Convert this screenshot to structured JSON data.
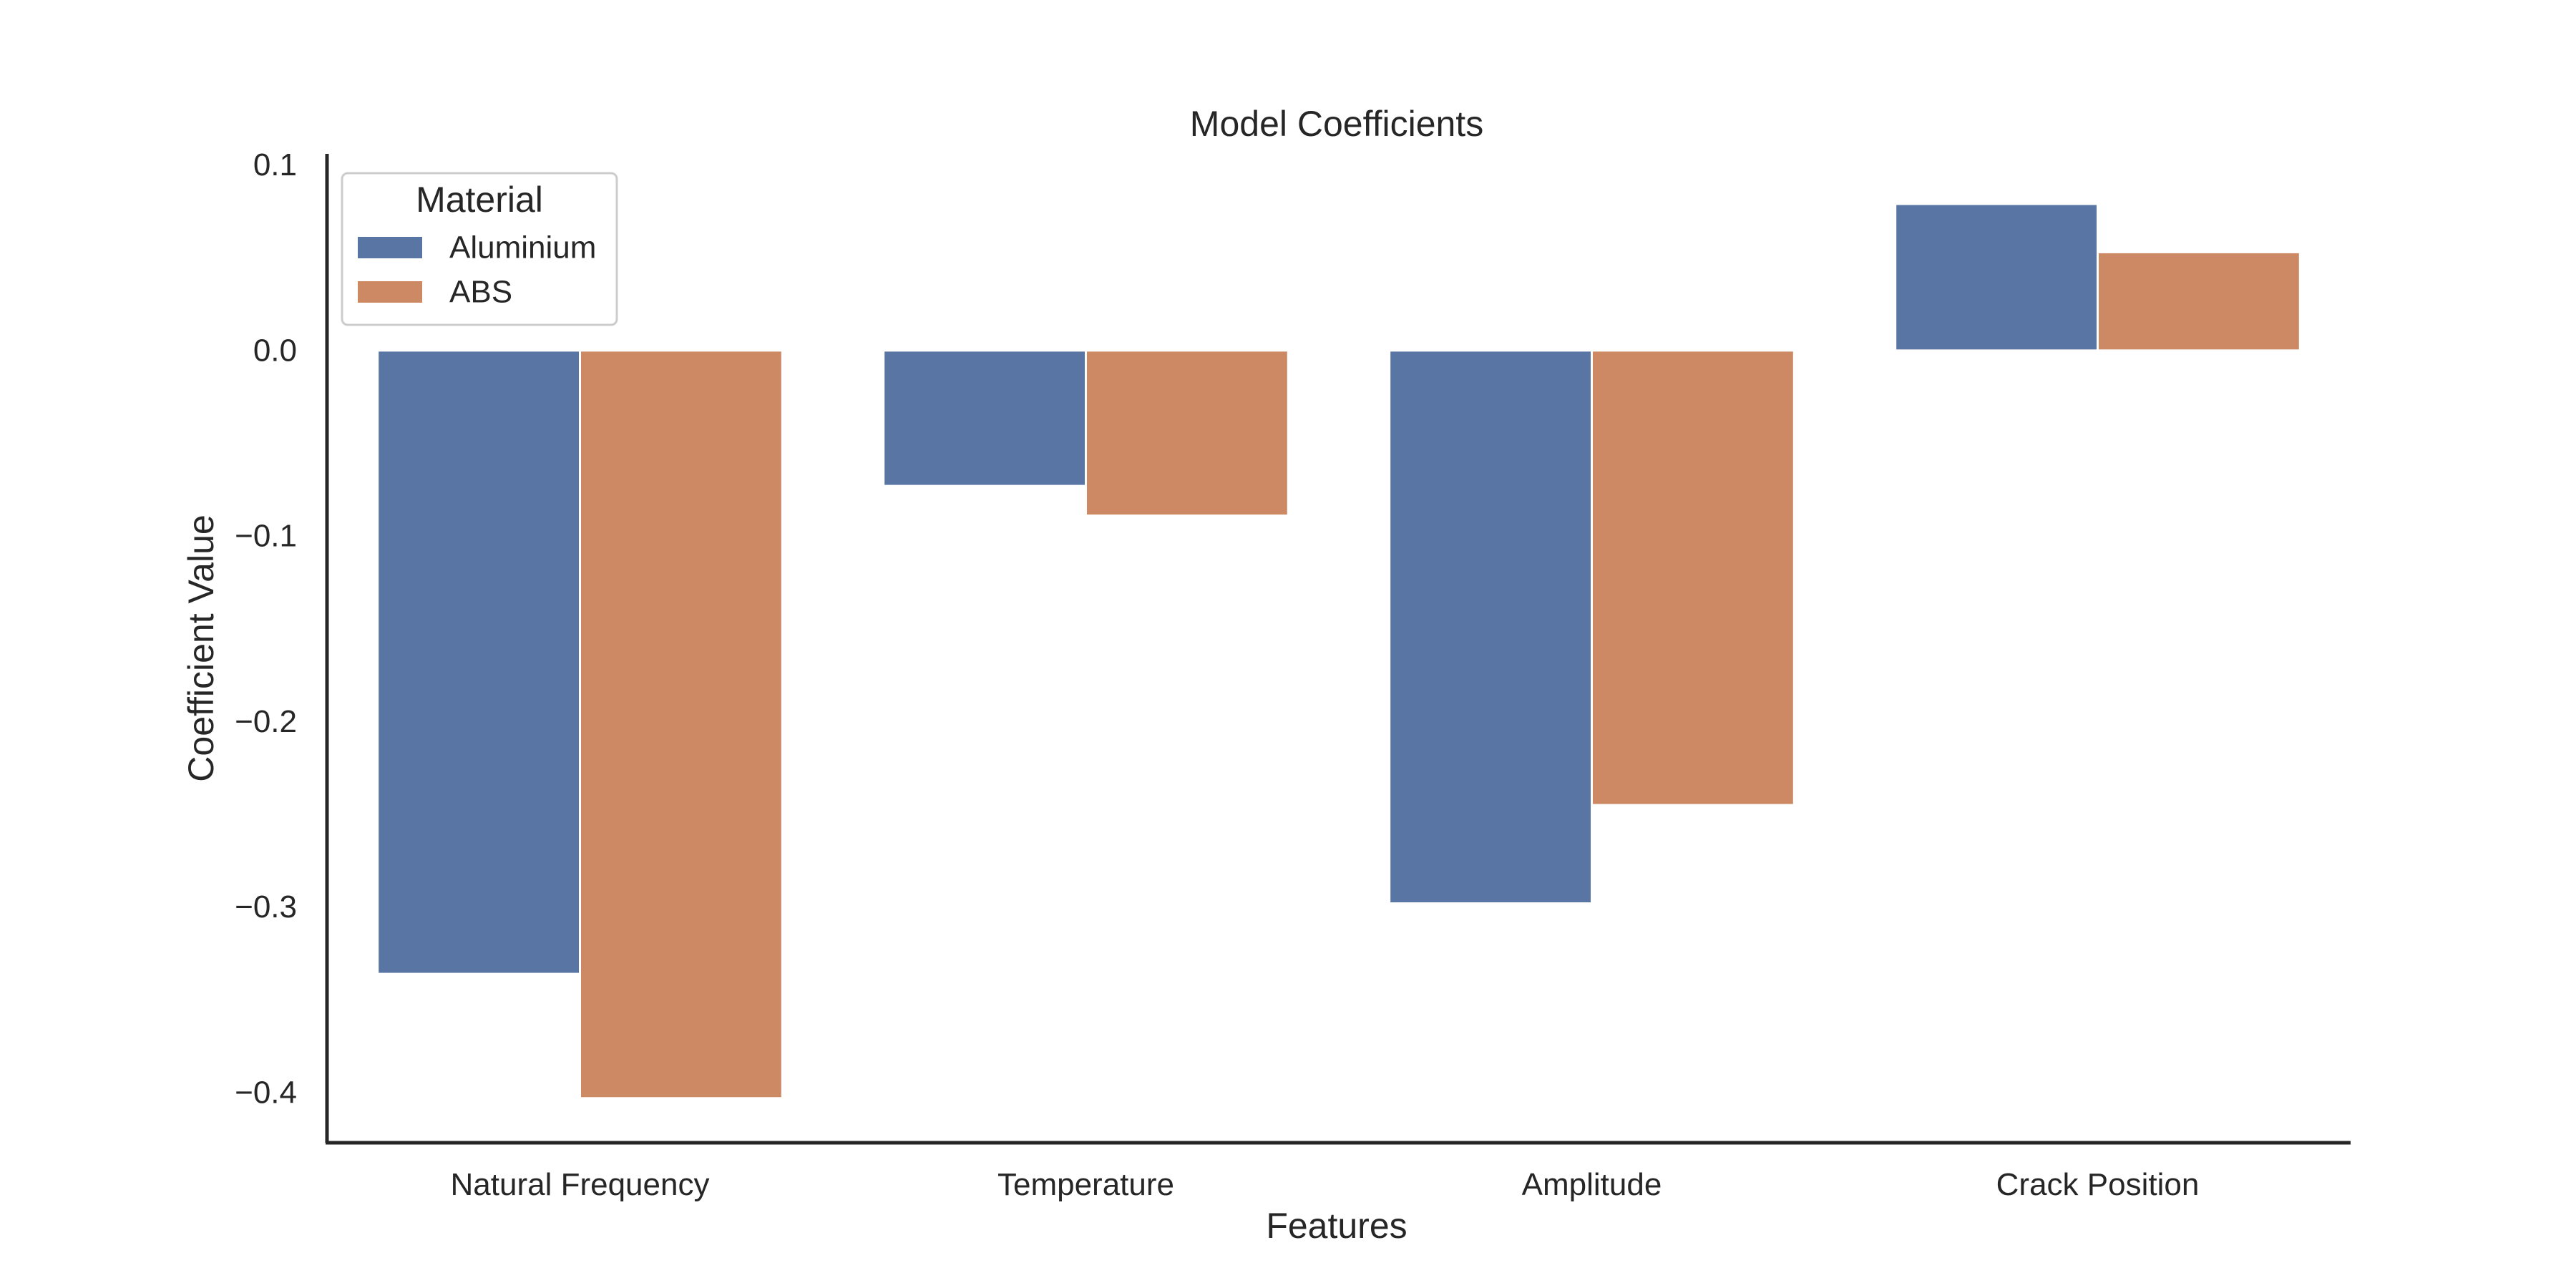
{
  "chart_data": {
    "type": "bar",
    "title": "Model Coefficients",
    "xlabel": "Features",
    "ylabel": "Coefficient Value",
    "categories": [
      "Natural Frequency",
      "Temperature",
      "Amplitude",
      "Crack Position"
    ],
    "series": [
      {
        "name": "Aluminium",
        "color": "#5875a4",
        "values": [
          -0.336,
          -0.073,
          -0.298,
          0.079
        ]
      },
      {
        "name": "ABS",
        "color": "#cc8963",
        "values": [
          -0.403,
          -0.089,
          -0.245,
          0.053
        ]
      }
    ],
    "ylim": [
      -0.427,
      0.106
    ],
    "yticks": [
      0.1,
      0.0,
      -0.1,
      -0.2,
      -0.3,
      -0.4
    ],
    "ytick_labels": [
      "0.1",
      "0.0",
      "−0.1",
      "−0.2",
      "−0.3",
      "−0.4"
    ],
    "grid": false,
    "legend": {
      "title": "Material",
      "placement": "top-left"
    }
  }
}
